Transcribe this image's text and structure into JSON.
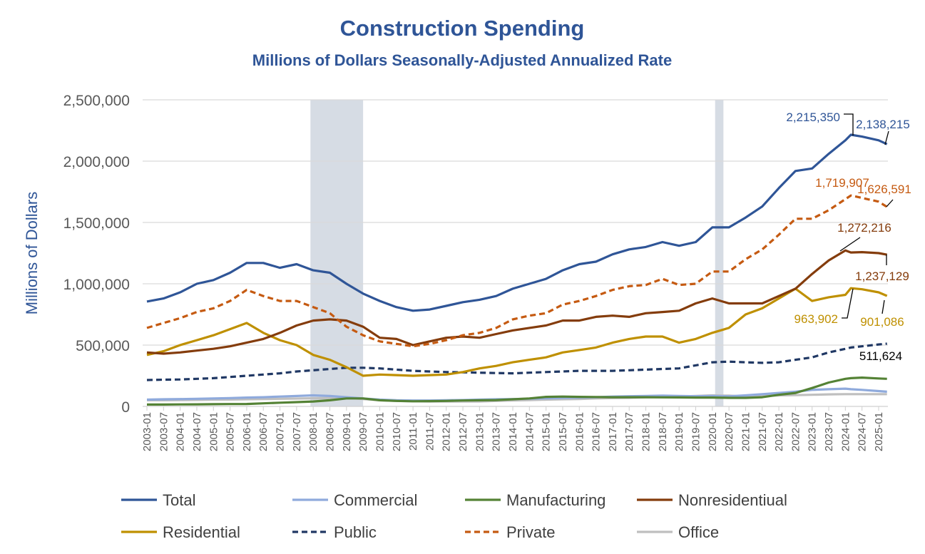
{
  "chart_data": {
    "type": "line",
    "title": "Construction Spending",
    "subtitle": "Millions of Dollars Seasonally-Adjusted Annualized Rate",
    "ylabel": "Millions of Dollars",
    "xlabel": "",
    "ylim": [
      0,
      2500000
    ],
    "yticks": [
      "0",
      "500,000",
      "1,000,000",
      "1,500,000",
      "2,000,000",
      "2,500,000"
    ],
    "grid": true,
    "legend_position": "bottom",
    "xtick_labels": [
      "2003-01",
      "2003-07",
      "2004-01",
      "2004-07",
      "2005-01",
      "2005-07",
      "2006-01",
      "2006-07",
      "2007-01",
      "2007-07",
      "2008-01",
      "2008-07",
      "2009-01",
      "2009-07",
      "2010-01",
      "2010-07",
      "2011-01",
      "2011-07",
      "2012-01",
      "2012-07",
      "2013-01",
      "2013-07",
      "2014-01",
      "2014-07",
      "2015-01",
      "2015-07",
      "2016-01",
      "2016-07",
      "2017-01",
      "2017-07",
      "2018-01",
      "2018-07",
      "2019-01",
      "2019-07",
      "2020-01",
      "2020-07",
      "2021-01",
      "2021-07",
      "2022-01",
      "2022-07",
      "2023-01",
      "2023-07",
      "2024-01",
      "2024-07",
      "2025-01"
    ],
    "x": [
      "2003-01",
      "2003-07",
      "2004-01",
      "2004-07",
      "2005-01",
      "2005-07",
      "2006-01",
      "2006-07",
      "2007-01",
      "2007-07",
      "2008-01",
      "2008-07",
      "2009-01",
      "2009-07",
      "2010-01",
      "2010-07",
      "2011-01",
      "2011-07",
      "2012-01",
      "2012-07",
      "2013-01",
      "2013-07",
      "2014-01",
      "2014-07",
      "2015-01",
      "2015-07",
      "2016-01",
      "2016-07",
      "2017-01",
      "2017-07",
      "2018-01",
      "2018-07",
      "2019-01",
      "2019-07",
      "2020-01",
      "2020-07",
      "2021-01",
      "2021-07",
      "2022-01",
      "2022-07",
      "2023-01",
      "2023-07",
      "2024-01",
      "2024-03",
      "2024-07",
      "2025-01",
      "2025-04"
    ],
    "recessions": [
      [
        "2007-12",
        "2009-06"
      ],
      [
        "2020-02",
        "2020-04"
      ]
    ],
    "series": [
      {
        "name": "Total",
        "color": "#2F5597",
        "dash": false,
        "values": [
          855000,
          880000,
          930000,
          1000000,
          1030000,
          1090000,
          1170000,
          1170000,
          1130000,
          1160000,
          1110000,
          1090000,
          1000000,
          920000,
          860000,
          810000,
          780000,
          790000,
          820000,
          850000,
          870000,
          900000,
          960000,
          1000000,
          1040000,
          1110000,
          1160000,
          1180000,
          1240000,
          1280000,
          1300000,
          1340000,
          1310000,
          1340000,
          1460000,
          1460000,
          1540000,
          1630000,
          1780000,
          1920000,
          1940000,
          2060000,
          2170000,
          2215350,
          2200000,
          2170000,
          2138215
        ]
      },
      {
        "name": "Commercial",
        "color": "#8FAADC",
        "dash": false,
        "values": [
          55000,
          58000,
          60000,
          62000,
          65000,
          68000,
          72000,
          75000,
          80000,
          85000,
          90000,
          85000,
          75000,
          65000,
          55000,
          50000,
          48000,
          48000,
          50000,
          52000,
          55000,
          58000,
          60000,
          63000,
          66000,
          70000,
          72000,
          75000,
          80000,
          83000,
          85000,
          88000,
          85000,
          83000,
          85000,
          82000,
          90000,
          100000,
          110000,
          120000,
          135000,
          140000,
          145000,
          140000,
          135000,
          125000,
          120000
        ]
      },
      {
        "name": "Manufacturing",
        "color": "#548235",
        "dash": false,
        "values": [
          15000,
          15000,
          16000,
          17000,
          18000,
          19000,
          20000,
          25000,
          30000,
          35000,
          40000,
          50000,
          65000,
          65000,
          50000,
          45000,
          42000,
          43000,
          45000,
          48000,
          50000,
          52000,
          58000,
          65000,
          78000,
          80000,
          78000,
          77000,
          75000,
          75000,
          75000,
          74000,
          73000,
          72000,
          72000,
          70000,
          70000,
          75000,
          95000,
          110000,
          150000,
          195000,
          225000,
          230000,
          235000,
          228000,
          225000
        ]
      },
      {
        "name": "Nonresidentiual",
        "color": "#843C0C",
        "dash": false,
        "values": [
          440000,
          430000,
          440000,
          455000,
          470000,
          490000,
          520000,
          550000,
          600000,
          660000,
          700000,
          710000,
          700000,
          650000,
          560000,
          550000,
          500000,
          530000,
          560000,
          570000,
          560000,
          590000,
          620000,
          640000,
          660000,
          700000,
          700000,
          730000,
          740000,
          730000,
          760000,
          770000,
          780000,
          840000,
          880000,
          840000,
          840000,
          840000,
          900000,
          960000,
          1080000,
          1190000,
          1272216,
          1255000,
          1258000,
          1250000,
          1237129
        ]
      },
      {
        "name": "Residential",
        "color": "#BF9000",
        "dash": false,
        "values": [
          420000,
          450000,
          500000,
          540000,
          580000,
          630000,
          680000,
          600000,
          540000,
          500000,
          420000,
          380000,
          320000,
          250000,
          260000,
          255000,
          250000,
          255000,
          260000,
          280000,
          310000,
          330000,
          360000,
          380000,
          400000,
          440000,
          460000,
          480000,
          520000,
          550000,
          570000,
          570000,
          520000,
          550000,
          600000,
          640000,
          750000,
          800000,
          880000,
          960000,
          860000,
          890000,
          910000,
          963902,
          955000,
          930000,
          901086
        ]
      },
      {
        "name": "Public",
        "color": "#203864",
        "dash": true,
        "values": [
          215000,
          218000,
          220000,
          225000,
          230000,
          240000,
          250000,
          260000,
          270000,
          285000,
          295000,
          305000,
          315000,
          315000,
          310000,
          300000,
          290000,
          285000,
          280000,
          278000,
          275000,
          272000,
          270000,
          275000,
          280000,
          285000,
          290000,
          290000,
          290000,
          295000,
          300000,
          305000,
          310000,
          335000,
          360000,
          365000,
          360000,
          355000,
          360000,
          380000,
          400000,
          440000,
          470000,
          480000,
          490000,
          505000,
          511624
        ]
      },
      {
        "name": "Private",
        "color": "#C55A11",
        "dash": true,
        "values": [
          640000,
          680000,
          720000,
          770000,
          800000,
          860000,
          950000,
          900000,
          860000,
          860000,
          810000,
          760000,
          650000,
          580000,
          530000,
          510000,
          490000,
          510000,
          540000,
          580000,
          600000,
          640000,
          710000,
          740000,
          760000,
          830000,
          860000,
          900000,
          950000,
          980000,
          990000,
          1040000,
          990000,
          1000000,
          1100000,
          1100000,
          1200000,
          1280000,
          1400000,
          1530000,
          1530000,
          1600000,
          1690000,
          1719907,
          1700000,
          1670000,
          1626591
        ]
      },
      {
        "name": "Office",
        "color": "#BFBFBF",
        "dash": false,
        "values": [
          50000,
          50000,
          52000,
          53000,
          55000,
          56000,
          58000,
          60000,
          62000,
          64000,
          66000,
          68000,
          70000,
          60000,
          50000,
          45000,
          42000,
          40000,
          40000,
          40000,
          40000,
          45000,
          48000,
          52000,
          55000,
          58000,
          60000,
          65000,
          68000,
          70000,
          75000,
          78000,
          80000,
          85000,
          90000,
          88000,
          80000,
          85000,
          90000,
          92000,
          95000,
          98000,
          100000,
          100000,
          100000,
          100000,
          100000
        ]
      }
    ],
    "annotations": [
      {
        "series": "Total",
        "text": "2,215,350",
        "color": "#2F5597"
      },
      {
        "series": "Total",
        "text": "2,138,215",
        "color": "#2F5597"
      },
      {
        "series": "Private",
        "text": "1,719,907",
        "color": "#C55A11"
      },
      {
        "series": "Private",
        "text": "1,626,591",
        "color": "#C55A11"
      },
      {
        "series": "Nonresidentiual",
        "text": "1,272,216",
        "color": "#843C0C"
      },
      {
        "series": "Nonresidentiual",
        "text": "1,237,129",
        "color": "#843C0C"
      },
      {
        "series": "Residential",
        "text": "963,902",
        "color": "#BF9000"
      },
      {
        "series": "Residential",
        "text": "901,086",
        "color": "#BF9000"
      },
      {
        "series": "Public",
        "text": "511,624",
        "color": "#000000"
      }
    ]
  }
}
